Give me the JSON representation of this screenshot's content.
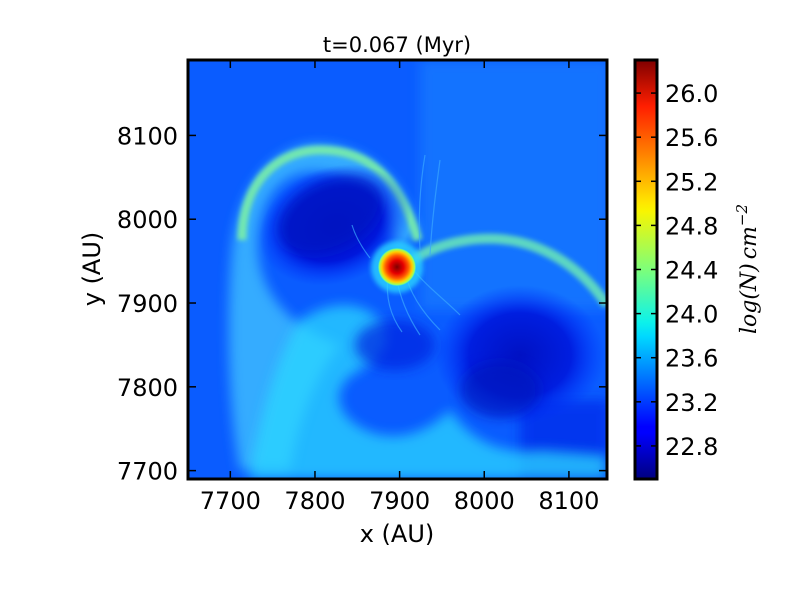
{
  "chart_data": {
    "type": "heatmap",
    "title": "t=0.067 (Myr)",
    "xlabel": "x (AU)",
    "ylabel": "y (AU)",
    "xlim": [
      7650,
      8145
    ],
    "ylim": [
      7690,
      8190
    ],
    "xticks": [
      7700,
      7800,
      7900,
      8000,
      8100
    ],
    "yticks": [
      7700,
      7800,
      7900,
      8000,
      8100
    ],
    "xtick_labels": [
      "7700",
      "7800",
      "7900",
      "8000",
      "8100"
    ],
    "ytick_labels": [
      "7700",
      "7800",
      "7900",
      "8000",
      "8100"
    ],
    "grid": false,
    "colormap": "jet",
    "colorbar": {
      "label": "log(N) cm^-2",
      "label_base": "log(N)",
      "label_unit": "cm",
      "label_exp": "−2",
      "range": [
        22.5,
        26.3
      ],
      "ticks": [
        22.8,
        23.2,
        23.6,
        24.0,
        24.4,
        24.8,
        25.2,
        25.6,
        26.0
      ],
      "tick_labels": [
        "22.8",
        "23.2",
        "23.6",
        "24.0",
        "24.4",
        "24.8",
        "25.2",
        "25.6",
        "26.0"
      ]
    },
    "background_level": 23.2,
    "features": [
      {
        "name": "central-protostar",
        "x": 7897,
        "y": 7943,
        "radius": 22,
        "peak": 26.2
      },
      {
        "name": "shell-arc",
        "x": [
          7710,
          7730,
          7760,
          7800,
          7850,
          7900,
          7920
        ],
        "y": [
          7760,
          7880,
          8020,
          8080,
          8070,
          8010,
          7960
        ],
        "level": 23.8
      },
      {
        "name": "arm-east",
        "x": [
          7920,
          7980,
          8050,
          8110,
          8145
        ],
        "y": [
          7945,
          7960,
          7945,
          7910,
          7880
        ],
        "level": 23.8
      },
      {
        "name": "lower-plume",
        "x": [
          7700,
          7760,
          7830,
          7890,
          7960,
          8020,
          8100
        ],
        "y": [
          7790,
          7760,
          7740,
          7720,
          7740,
          7770,
          7760
        ],
        "level": 23.6
      },
      {
        "name": "cavity-upper",
        "x": 7830,
        "y": 7985,
        "level": 22.6
      },
      {
        "name": "cavity-lower-right",
        "x": 8000,
        "y": 7830,
        "level": 22.7
      }
    ]
  }
}
